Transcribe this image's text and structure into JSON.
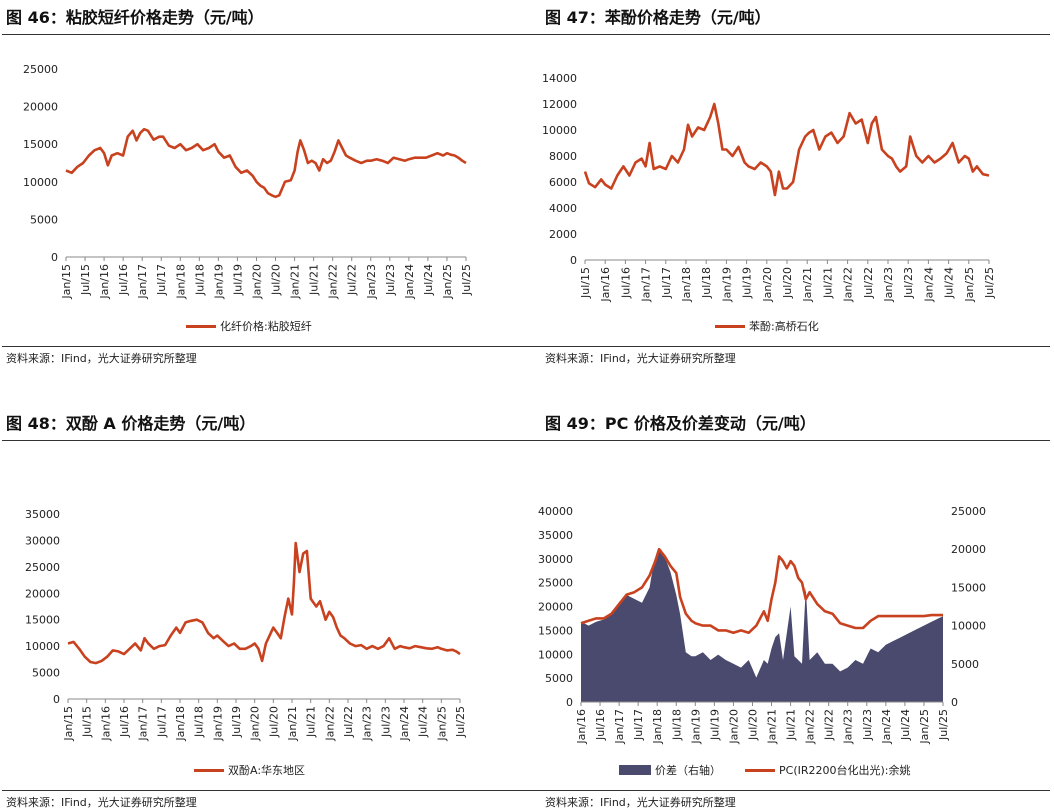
{
  "panels": [
    {
      "title": "图 46：粘胶短纤价格走势（元/吨）",
      "source": "资料来源：IFind，光大证券研究所整理"
    },
    {
      "title": "图 47：苯酚价格走势（元/吨）",
      "source": "资料来源：IFind，光大证券研究所整理"
    },
    {
      "title": "图 48：双酚 A 价格走势（元/吨）",
      "source": "资料来源：IFind，光大证券研究所整理"
    },
    {
      "title": "图 49：PC 价格及价差变动（元/吨）",
      "source": "资料来源：IFind，光大证券研究所整理"
    }
  ],
  "colors": {
    "line": "#c8421f",
    "area": "#4a4a6e",
    "axis": "#888888"
  },
  "chart_data": [
    {
      "type": "line",
      "title": "图 46：粘胶短纤价格走势（元/吨）",
      "ylim": [
        0,
        25000
      ],
      "yticks": [
        0,
        5000,
        10000,
        15000,
        20000,
        25000
      ],
      "xticks": [
        "Jan/15",
        "Jul/15",
        "Jan/16",
        "Jul/16",
        "Jan/17",
        "Jul/17",
        "Jan/18",
        "Jul/18",
        "Jan/19",
        "Jul/19",
        "Jan/20",
        "Jul/20",
        "Jan/21",
        "Jul/21",
        "Jan/22",
        "Jul/22",
        "Jan/23",
        "Jul/23",
        "Jan/24",
        "Jul/24",
        "Jan/25",
        "Jul/25"
      ],
      "xrange": [
        2015.0,
        2025.5
      ],
      "series": [
        {
          "name": "化纤价格:粘胶短纤",
          "x": [
            2015.0,
            2015.15,
            2015.3,
            2015.45,
            2015.6,
            2015.75,
            2015.9,
            2016.0,
            2016.1,
            2016.2,
            2016.35,
            2016.5,
            2016.62,
            2016.75,
            2016.85,
            2016.95,
            2017.05,
            2017.15,
            2017.3,
            2017.45,
            2017.55,
            2017.7,
            2017.85,
            2018.0,
            2018.15,
            2018.3,
            2018.45,
            2018.6,
            2018.75,
            2018.9,
            2019.0,
            2019.15,
            2019.3,
            2019.45,
            2019.6,
            2019.75,
            2019.9,
            2020.0,
            2020.1,
            2020.2,
            2020.3,
            2020.4,
            2020.5,
            2020.6,
            2020.75,
            2020.9,
            2021.0,
            2021.08,
            2021.15,
            2021.25,
            2021.35,
            2021.45,
            2021.55,
            2021.65,
            2021.75,
            2021.85,
            2021.95,
            2022.05,
            2022.15,
            2022.25,
            2022.35,
            2022.45,
            2022.6,
            2022.75,
            2022.9,
            2023.0,
            2023.15,
            2023.3,
            2023.45,
            2023.6,
            2023.75,
            2023.9,
            2024.0,
            2024.15,
            2024.3,
            2024.45,
            2024.6,
            2024.75,
            2024.9,
            2025.0,
            2025.1,
            2025.2,
            2025.3,
            2025.4,
            2025.5
          ],
          "y": [
            11500,
            11200,
            12000,
            12500,
            13500,
            14200,
            14500,
            13800,
            12200,
            13500,
            13800,
            13500,
            16000,
            16800,
            15500,
            16500,
            17000,
            16800,
            15600,
            16000,
            16000,
            14800,
            14500,
            15000,
            14200,
            14500,
            15000,
            14200,
            14500,
            15000,
            14000,
            13200,
            13500,
            12000,
            11200,
            11500,
            10800,
            10000,
            9500,
            9200,
            8500,
            8200,
            8000,
            8200,
            10000,
            10200,
            11500,
            14000,
            15500,
            14200,
            12500,
            12800,
            12500,
            11500,
            13000,
            12500,
            12800,
            14000,
            15500,
            14500,
            13500,
            13200,
            12800,
            12500,
            12800,
            12800,
            13000,
            12800,
            12500,
            13200,
            13000,
            12800,
            13000,
            13200,
            13200,
            13200,
            13500,
            13800,
            13500,
            13800,
            13600,
            13500,
            13200,
            12800,
            12500
          ]
        }
      ],
      "legend": "bottom"
    },
    {
      "type": "line",
      "title": "图 47：苯酚价格走势（元/吨）",
      "ylim": [
        0,
        14000
      ],
      "yticks": [
        0,
        2000,
        4000,
        6000,
        8000,
        10000,
        12000,
        14000
      ],
      "xticks": [
        "Jul/15",
        "Jan/16",
        "Jul/16",
        "Jan/17",
        "Jul/17",
        "Jan/18",
        "Jul/18",
        "Jan/19",
        "Jul/19",
        "Jan/20",
        "Jul/20",
        "Jan/21",
        "Jul/21",
        "Jan/22",
        "Jul/22",
        "Jan/23",
        "Jul/23",
        "Jan/24",
        "Jul/24",
        "Jan/25",
        "Jul/25"
      ],
      "xrange": [
        2015.5,
        2025.5
      ],
      "series": [
        {
          "name": "苯酚:高桥石化",
          "x": [
            2015.5,
            2015.6,
            2015.75,
            2015.9,
            2016.0,
            2016.15,
            2016.3,
            2016.45,
            2016.6,
            2016.75,
            2016.9,
            2017.0,
            2017.1,
            2017.2,
            2017.35,
            2017.5,
            2017.65,
            2017.8,
            2017.95,
            2018.05,
            2018.15,
            2018.3,
            2018.45,
            2018.6,
            2018.7,
            2018.8,
            2018.9,
            2019.0,
            2019.15,
            2019.3,
            2019.45,
            2019.55,
            2019.7,
            2019.85,
            2020.0,
            2020.1,
            2020.2,
            2020.3,
            2020.4,
            2020.5,
            2020.65,
            2020.8,
            2020.95,
            2021.05,
            2021.15,
            2021.3,
            2021.45,
            2021.6,
            2021.75,
            2021.9,
            2022.05,
            2022.2,
            2022.35,
            2022.5,
            2022.6,
            2022.7,
            2022.85,
            2023.0,
            2023.1,
            2023.2,
            2023.3,
            2023.45,
            2023.55,
            2023.7,
            2023.85,
            2024.0,
            2024.15,
            2024.3,
            2024.45,
            2024.6,
            2024.75,
            2024.9,
            2025.0,
            2025.1,
            2025.2,
            2025.35,
            2025.5
          ],
          "y": [
            6800,
            5900,
            5600,
            6200,
            5800,
            5500,
            6500,
            7200,
            6500,
            7500,
            7800,
            7200,
            9000,
            7000,
            7200,
            7000,
            8000,
            7500,
            8500,
            10400,
            9500,
            10200,
            10000,
            11000,
            12000,
            10500,
            8500,
            8500,
            8000,
            8700,
            7500,
            7200,
            7000,
            7500,
            7200,
            6800,
            5000,
            6800,
            5500,
            5500,
            6000,
            8500,
            9500,
            9800,
            10000,
            8500,
            9500,
            9800,
            9000,
            9500,
            11300,
            10500,
            10800,
            9000,
            10500,
            11000,
            8500,
            8000,
            7800,
            7200,
            6800,
            7200,
            9500,
            8000,
            7500,
            8000,
            7500,
            7800,
            8200,
            9000,
            7500,
            8000,
            7800,
            6800,
            7200,
            6600,
            6500
          ]
        }
      ],
      "legend": "bottom"
    },
    {
      "type": "line",
      "title": "图 48：双酚 A 价格走势（元/吨）",
      "ylim": [
        0,
        35000
      ],
      "yticks": [
        0,
        5000,
        10000,
        15000,
        20000,
        25000,
        30000,
        35000
      ],
      "xticks": [
        "Jan/15",
        "Jul/15",
        "Jan/16",
        "Jul/16",
        "Jan/17",
        "Jul/17",
        "Jan/18",
        "Jul/18",
        "Jan/19",
        "Jul/19",
        "Jan/20",
        "Jul/20",
        "Jan/21",
        "Jul/21",
        "Jan/22",
        "Jul/22",
        "Jan/23",
        "Jul/23",
        "Jan/24",
        "Jul/24",
        "Jan/25",
        "Jul/25"
      ],
      "xrange": [
        2015.0,
        2025.5
      ],
      "series": [
        {
          "name": "双酚A:华东地区",
          "x": [
            2015.0,
            2015.15,
            2015.3,
            2015.45,
            2015.6,
            2015.75,
            2015.9,
            2016.05,
            2016.2,
            2016.35,
            2016.5,
            2016.65,
            2016.8,
            2016.95,
            2017.05,
            2017.15,
            2017.3,
            2017.45,
            2017.6,
            2017.75,
            2017.9,
            2018.0,
            2018.15,
            2018.3,
            2018.45,
            2018.6,
            2018.75,
            2018.9,
            2019.0,
            2019.15,
            2019.3,
            2019.45,
            2019.6,
            2019.75,
            2019.9,
            2020.0,
            2020.1,
            2020.2,
            2020.3,
            2020.4,
            2020.5,
            2020.6,
            2020.7,
            2020.8,
            2020.9,
            2021.0,
            2021.05,
            2021.1,
            2021.2,
            2021.3,
            2021.4,
            2021.5,
            2021.55,
            2021.65,
            2021.75,
            2021.9,
            2022.0,
            2022.1,
            2022.2,
            2022.3,
            2022.4,
            2022.55,
            2022.7,
            2022.85,
            2023.0,
            2023.15,
            2023.3,
            2023.45,
            2023.6,
            2023.75,
            2023.9,
            2024.0,
            2024.15,
            2024.3,
            2024.45,
            2024.6,
            2024.75,
            2024.9,
            2025.0,
            2025.15,
            2025.3,
            2025.4,
            2025.5
          ],
          "y": [
            10500,
            10800,
            9500,
            8000,
            7000,
            6800,
            7200,
            8000,
            9200,
            9000,
            8500,
            9500,
            10500,
            9200,
            11500,
            10500,
            9500,
            10000,
            10200,
            12000,
            13500,
            12500,
            14500,
            14800,
            15000,
            14500,
            12500,
            11500,
            12000,
            11000,
            10000,
            10500,
            9500,
            9500,
            10000,
            10500,
            9500,
            7200,
            10500,
            12000,
            13500,
            12500,
            11500,
            15500,
            19000,
            16000,
            22000,
            29500,
            24000,
            27500,
            28000,
            19000,
            18500,
            17500,
            18500,
            15000,
            16500,
            15500,
            13500,
            12000,
            11500,
            10500,
            10000,
            10200,
            9500,
            10000,
            9500,
            10000,
            11500,
            9500,
            10000,
            9800,
            9600,
            10000,
            9800,
            9600,
            9500,
            9800,
            9500,
            9200,
            9300,
            9000,
            8500
          ]
        }
      ],
      "legend": "bottom"
    },
    {
      "type": "area+line",
      "title": "图 49：PC 价格及价差变动（元/吨）",
      "ylim_left": [
        0,
        40000
      ],
      "yticks_left": [
        0,
        5000,
        10000,
        15000,
        20000,
        25000,
        30000,
        35000,
        40000
      ],
      "ylim_right": [
        0,
        25000
      ],
      "yticks_right": [
        0,
        5000,
        10000,
        15000,
        20000,
        25000
      ],
      "xticks": [
        "Jan/16",
        "Jul/16",
        "Jan/17",
        "Jul/17",
        "Jan/18",
        "Jul/18",
        "Jan/19",
        "Jul/19",
        "Jan/20",
        "Jul/20",
        "Jan/21",
        "Jul/21",
        "Jan/22",
        "Jul/22",
        "Jan/23",
        "Jul/23",
        "Jan/24",
        "Jul/24",
        "Jan/25",
        "Jul/25"
      ],
      "xrange": [
        2016.0,
        2025.5
      ],
      "series": [
        {
          "name": "价差（右轴）",
          "axis": "right",
          "type": "area",
          "x": [
            2016.0,
            2016.2,
            2016.4,
            2016.6,
            2016.8,
            2017.0,
            2017.2,
            2017.4,
            2017.6,
            2017.8,
            2017.9,
            2018.0,
            2018.1,
            2018.2,
            2018.35,
            2018.5,
            2018.6,
            2018.75,
            2018.9,
            2019.0,
            2019.2,
            2019.4,
            2019.6,
            2019.8,
            2020.0,
            2020.2,
            2020.3,
            2020.4,
            2020.6,
            2020.8,
            2020.9,
            2021.0,
            2021.1,
            2021.2,
            2021.3,
            2021.4,
            2021.5,
            2021.6,
            2021.7,
            2021.8,
            2021.9,
            2022.0,
            2022.2,
            2022.4,
            2022.6,
            2022.8,
            2023.0,
            2023.2,
            2023.4,
            2023.6,
            2023.8,
            2024.0,
            2024.2,
            2024.4,
            2024.6,
            2024.8,
            2025.0,
            2025.2,
            2025.4,
            2025.5
          ],
          "y": [
            10500,
            10000,
            10500,
            10800,
            11500,
            13000,
            14000,
            13500,
            13000,
            15000,
            18000,
            19500,
            20000,
            19000,
            17000,
            14000,
            11500,
            6500,
            6000,
            6000,
            6500,
            5500,
            6200,
            5500,
            5000,
            4500,
            5000,
            5500,
            3200,
            5500,
            5000,
            7000,
            8500,
            9000,
            5500,
            9000,
            12500,
            6000,
            5500,
            5000,
            15000,
            5500,
            6500,
            5000,
            5000,
            4000,
            4500,
            5500,
            5000,
            7000,
            6500,
            7500,
            8000,
            8500,
            9000,
            9500,
            10000,
            10500,
            11000,
            11200
          ]
        },
        {
          "name": "PC(IR2200台化出光):余姚",
          "axis": "left",
          "type": "line",
          "x": [
            2016.0,
            2016.2,
            2016.4,
            2016.6,
            2016.8,
            2017.0,
            2017.2,
            2017.4,
            2017.6,
            2017.8,
            2017.95,
            2018.05,
            2018.2,
            2018.35,
            2018.5,
            2018.6,
            2018.75,
            2018.9,
            2019.0,
            2019.2,
            2019.4,
            2019.6,
            2019.8,
            2020.0,
            2020.2,
            2020.4,
            2020.6,
            2020.8,
            2020.9,
            2021.0,
            2021.1,
            2021.2,
            2021.3,
            2021.4,
            2021.5,
            2021.6,
            2021.7,
            2021.8,
            2021.9,
            2022.0,
            2022.2,
            2022.4,
            2022.6,
            2022.8,
            2023.0,
            2023.2,
            2023.4,
            2023.6,
            2023.8,
            2024.0,
            2024.2,
            2024.4,
            2024.6,
            2024.8,
            2025.0,
            2025.2,
            2025.4,
            2025.5
          ],
          "y": [
            16500,
            17000,
            17500,
            17500,
            18500,
            20500,
            22500,
            23000,
            24000,
            26500,
            29500,
            32000,
            30500,
            28500,
            27000,
            22000,
            18500,
            17000,
            16500,
            16000,
            16000,
            15000,
            15000,
            14500,
            15000,
            14500,
            16000,
            19000,
            17000,
            21500,
            25000,
            30500,
            29500,
            28000,
            29500,
            28500,
            26000,
            25000,
            21500,
            23000,
            20500,
            19000,
            18500,
            16500,
            16000,
            15500,
            15500,
            17000,
            18000,
            18000,
            18000,
            18000,
            18000,
            18000,
            18000,
            18200,
            18200,
            18200
          ]
        }
      ],
      "legend": "bottom"
    }
  ]
}
